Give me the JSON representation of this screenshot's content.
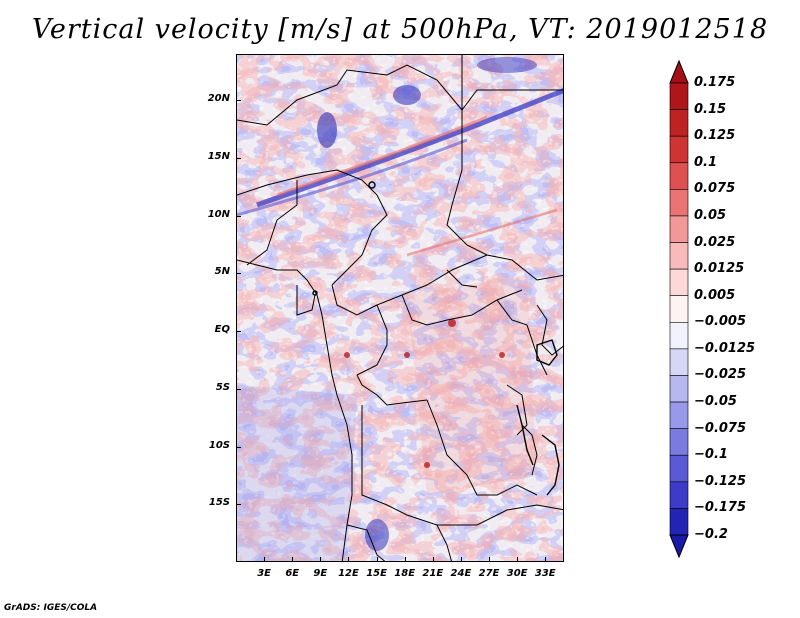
{
  "title": "Vertical velocity [m/s] at 500hPa, VT: 2019012518",
  "footer": "GrADS: IGES/COLA",
  "map": {
    "lon_range": [
      0,
      35
    ],
    "lat_range": [
      -20,
      24
    ],
    "y_ticks": [
      {
        "label": "20N",
        "lat": 20
      },
      {
        "label": "15N",
        "lat": 15
      },
      {
        "label": "10N",
        "lat": 10
      },
      {
        "label": "5N",
        "lat": 5
      },
      {
        "label": "EQ",
        "lat": 0
      },
      {
        "label": "5S",
        "lat": -5
      },
      {
        "label": "10S",
        "lat": -10
      },
      {
        "label": "15S",
        "lat": -15
      }
    ],
    "x_ticks": [
      {
        "label": "3E",
        "lon": 3
      },
      {
        "label": "6E",
        "lon": 6
      },
      {
        "label": "9E",
        "lon": 9
      },
      {
        "label": "12E",
        "lon": 12
      },
      {
        "label": "15E",
        "lon": 15
      },
      {
        "label": "18E",
        "lon": 18
      },
      {
        "label": "21E",
        "lon": 21
      },
      {
        "label": "24E",
        "lon": 24
      },
      {
        "label": "27E",
        "lon": 27
      },
      {
        "label": "30E",
        "lon": 30
      },
      {
        "label": "33E",
        "lon": 33
      }
    ]
  },
  "colorbar": {
    "levels": [
      {
        "label": "0.175",
        "color": "#a50f15"
      },
      {
        "label": "0.15",
        "color": "#b71c1c"
      },
      {
        "label": "0.125",
        "color": "#c62828"
      },
      {
        "label": "0.1",
        "color": "#d84040"
      },
      {
        "label": "0.075",
        "color": "#e56060"
      },
      {
        "label": "0.05",
        "color": "#ee8585"
      },
      {
        "label": "0.025",
        "color": "#f5aaaa"
      },
      {
        "label": "0.0125",
        "color": "#fbcaca"
      },
      {
        "label": "0.005",
        "color": "#fde6e6"
      },
      {
        "label": "-0.005",
        "color": "#ffffff"
      },
      {
        "label": "-0.0125",
        "color": "#e4e4fa"
      },
      {
        "label": "-0.025",
        "color": "#c8c8f4"
      },
      {
        "label": "-0.05",
        "color": "#a8a8ee"
      },
      {
        "label": "-0.075",
        "color": "#8a8ae6"
      },
      {
        "label": "-0.1",
        "color": "#6a6adc"
      },
      {
        "label": "-0.125",
        "color": "#4a4ad0"
      },
      {
        "label": "-0.175",
        "color": "#2e2ec0"
      },
      {
        "label": "-0.2",
        "color": "#1a1aa8"
      }
    ],
    "top_arrow_color": "#a50f15",
    "bottom_arrow_color": "#1a1aa8"
  }
}
